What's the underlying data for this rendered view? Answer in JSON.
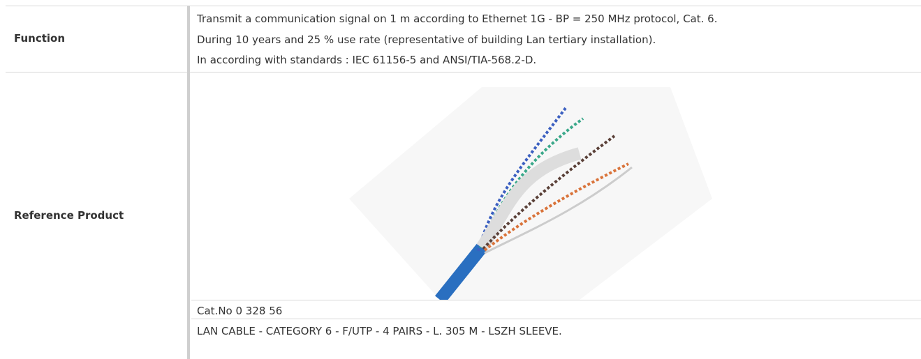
{
  "table": {
    "rows": [
      {
        "label": "Function",
        "lines": [
          "Transmit a communication signal on 1 m according to Ethernet 1G - BP = 250 MHz protocol, Cat. 6.",
          "During 10 years and 25 % use rate (representative of building Lan tertiary installation).",
          "In according with standards : IEC 61156-5 and ANSI/TIA-568.2-D."
        ]
      },
      {
        "label": "Reference Product",
        "lines": [
          "Cat.No 0 328 56",
          "LAN CABLE - CATEGORY 6 - F/UTP - 4 PAIRS - L. 305 M - LSZH SLEEVE."
        ]
      }
    ]
  }
}
